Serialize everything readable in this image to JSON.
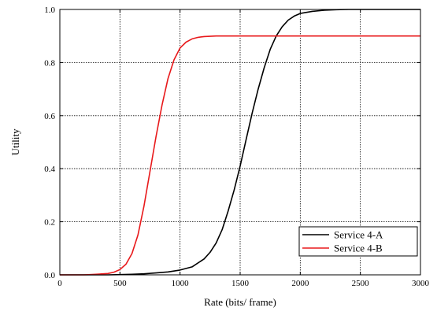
{
  "chart_data": {
    "type": "line",
    "title": "",
    "xlabel": "Rate (bits/ frame)",
    "ylabel": "Utility",
    "xlim": [
      0,
      3000
    ],
    "ylim": [
      0,
      1.0
    ],
    "xticks": [
      0,
      500,
      1000,
      1500,
      2000,
      2500,
      3000
    ],
    "yticks": [
      0.0,
      0.2,
      0.4,
      0.6,
      0.8,
      1.0
    ],
    "xtick_labels": [
      "0",
      "500",
      "1000",
      "1500",
      "2000",
      "2500",
      "3000"
    ],
    "ytick_labels": [
      "0.0",
      "0.2",
      "0.4",
      "0.6",
      "0.8",
      "1.0"
    ],
    "grid": true,
    "legend_position": "bottom-right",
    "series": [
      {
        "name": "Service 4-A",
        "color": "#000000",
        "x": [
          0,
          200,
          400,
          500,
          600,
          700,
          800,
          900,
          1000,
          1100,
          1200,
          1250,
          1300,
          1350,
          1400,
          1450,
          1500,
          1550,
          1600,
          1650,
          1700,
          1750,
          1800,
          1850,
          1900,
          1950,
          2000,
          2100,
          2200,
          2300,
          2400,
          2500,
          2600,
          2800,
          3000
        ],
        "y": [
          0,
          0.0,
          0.0,
          0.001,
          0.002,
          0.004,
          0.007,
          0.011,
          0.018,
          0.03,
          0.06,
          0.085,
          0.12,
          0.17,
          0.24,
          0.32,
          0.41,
          0.51,
          0.61,
          0.7,
          0.78,
          0.85,
          0.9,
          0.935,
          0.96,
          0.975,
          0.985,
          0.993,
          0.997,
          0.999,
          1.0,
          1.0,
          1.0,
          1.0,
          1.0
        ]
      },
      {
        "name": "Service 4-B",
        "color": "#e8191b",
        "x": [
          0,
          200,
          300,
          400,
          450,
          500,
          550,
          600,
          650,
          700,
          750,
          800,
          850,
          900,
          950,
          1000,
          1050,
          1100,
          1150,
          1200,
          1300,
          1400,
          1500,
          2000,
          2500,
          3000
        ],
        "y": [
          0,
          0.0,
          0.002,
          0.005,
          0.01,
          0.02,
          0.04,
          0.08,
          0.15,
          0.26,
          0.39,
          0.52,
          0.64,
          0.74,
          0.81,
          0.855,
          0.877,
          0.889,
          0.895,
          0.898,
          0.9,
          0.9,
          0.9,
          0.9,
          0.9,
          0.9
        ]
      }
    ]
  }
}
